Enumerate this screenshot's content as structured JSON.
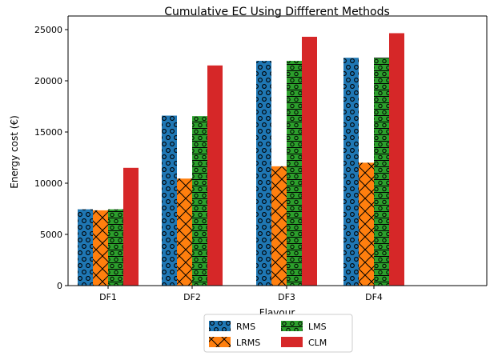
{
  "chart_data": {
    "type": "bar",
    "title": "Cumulative EC Using Diffferent Methods",
    "xlabel": "Flavour",
    "ylabel": "Energy cost (€)",
    "categories": [
      "DF1",
      "DF2",
      "DF3",
      "DF4"
    ],
    "ylim": [
      0,
      25000
    ],
    "yticks": [
      0,
      5000,
      10000,
      15000,
      20000,
      25000
    ],
    "grid": false,
    "legend_position": "bottom-center",
    "series": [
      {
        "name": "RMS",
        "values": [
          7450,
          16600,
          21950,
          22250
        ],
        "color": "#1f77b4",
        "hatch": "circles"
      },
      {
        "name": "LRMS",
        "values": [
          7350,
          10450,
          11650,
          12000
        ],
        "color": "#ff7f0e",
        "hatch": "crosses"
      },
      {
        "name": "LMS",
        "values": [
          7450,
          16550,
          21950,
          22250
        ],
        "color": "#2ca02c",
        "hatch": "circles-lines"
      },
      {
        "name": "CLM",
        "values": [
          11500,
          21500,
          24300,
          24650
        ],
        "color": "#d62728",
        "hatch": "none"
      }
    ]
  }
}
